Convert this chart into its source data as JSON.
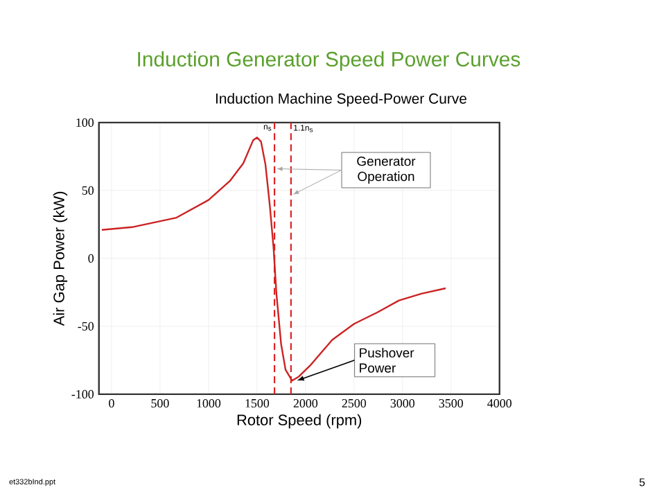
{
  "chart_data": {
    "type": "line",
    "title": "Induction Generator Speed Power Curves",
    "subtitle": "Induction Machine Speed-Power Curve",
    "xlabel": "Rotor Speed (rpm)",
    "ylabel": "Air Gap Power (kW)",
    "x": [
      -100,
      211,
      670,
      1000,
      1220,
      1358,
      1460,
      1500,
      1541,
      1587,
      1633,
      1670,
      1700,
      1748,
      1794,
      1862,
      1931,
      2046,
      2275,
      2505,
      2734,
      2963,
      3193,
      3445
    ],
    "series": [
      {
        "color": "#cc2222",
        "values": [
          21,
          23,
          30,
          43,
          57,
          70,
          87,
          89,
          86,
          69,
          38,
          8,
          -26,
          -63,
          -82,
          -90,
          -87,
          -79,
          -60,
          -48,
          -40,
          -31,
          -26,
          -22
        ]
      }
    ],
    "xlim": [
      -130,
      4000
    ],
    "ylim": [
      -100,
      100
    ],
    "xticks": [
      0,
      500,
      1000,
      1500,
      2000,
      2500,
      3000,
      3500,
      4000
    ],
    "yticks": [
      -100,
      -50,
      0,
      50,
      100
    ],
    "grid": true,
    "marker": "none",
    "line_style": "solid",
    "ref_lines": [
      {
        "axis": "x",
        "value": 1680,
        "label": "n$_{s}$",
        "color": "#dd2222",
        "line_style": "dashed"
      },
      {
        "axis": "x",
        "value": 1850,
        "label": "1.1n$_{s}$",
        "color": "#dd2222",
        "line_style": "dashed"
      }
    ],
    "annotations": [
      {
        "text": "Generator Operation",
        "x": 1850,
        "y": 47
      },
      {
        "text": "Pushover Power",
        "x": 1870,
        "y": -90
      },
      "et332bInd.ppt",
      "5"
    ]
  }
}
